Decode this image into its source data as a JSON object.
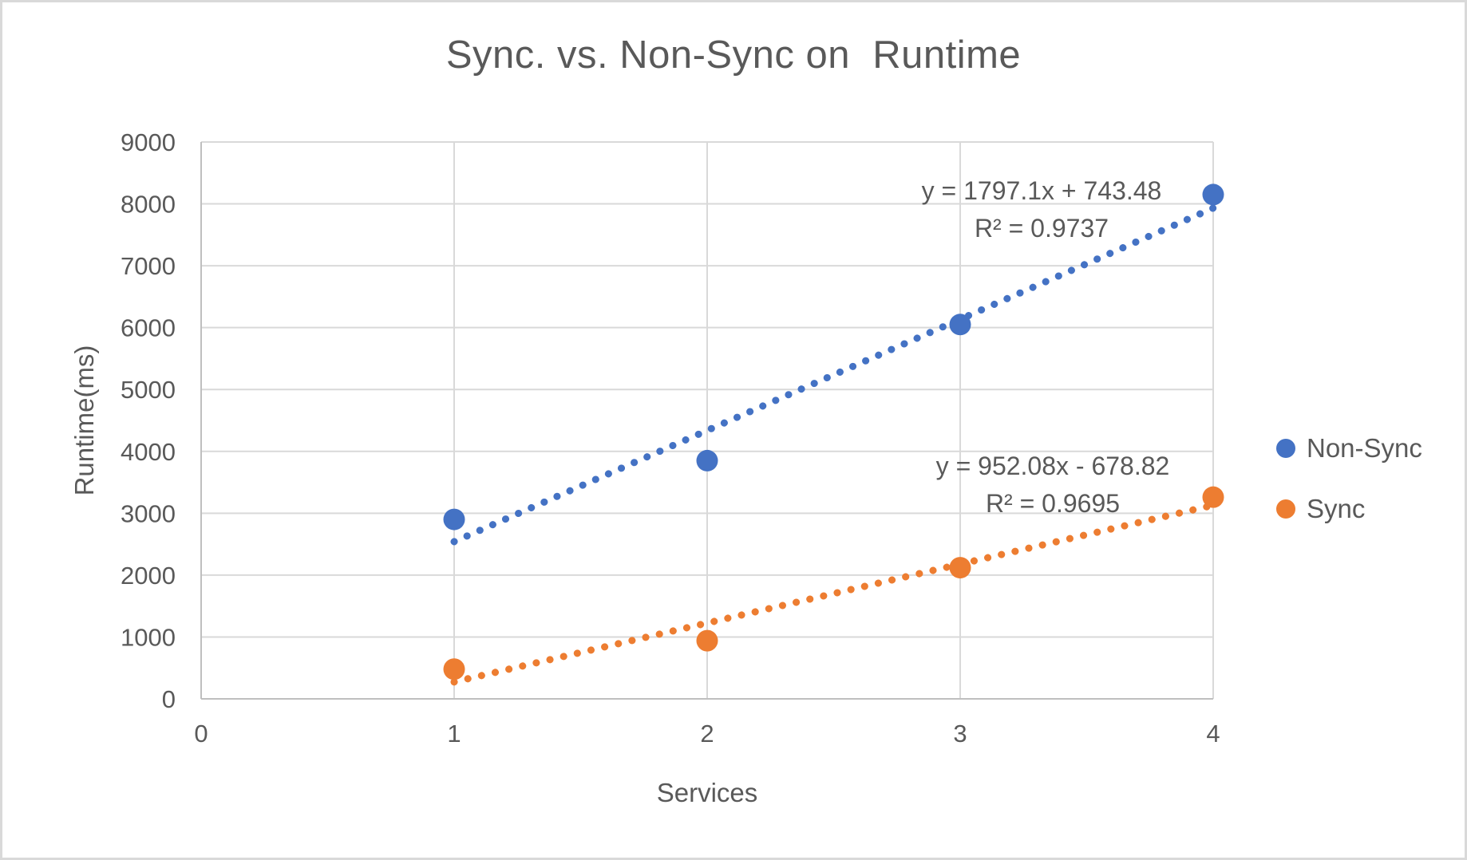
{
  "chart_data": {
    "type": "scatter",
    "title": "Sync. vs. Non-Sync on  Runtime",
    "xlabel": "Services",
    "ylabel": "Runtime(ms)",
    "xlim": [
      0,
      4
    ],
    "ylim": [
      0,
      9000
    ],
    "x_ticks": [
      0,
      1,
      2,
      3,
      4
    ],
    "y_ticks": [
      0,
      1000,
      2000,
      3000,
      4000,
      5000,
      6000,
      7000,
      8000,
      9000
    ],
    "grid": true,
    "legend_position": "right",
    "colors": {
      "grid": "#d9d9d9",
      "axis": "#bfbfbf",
      "text": "#595959",
      "title": "#595959",
      "background": "#ffffff",
      "border": "#d9d9d9"
    },
    "series": [
      {
        "name": "Non-Sync",
        "color": "#4472c4",
        "x": [
          1,
          2,
          3,
          4
        ],
        "values": [
          2900,
          3850,
          6050,
          8150
        ],
        "trendline": {
          "type": "linear",
          "slope": 1797.1,
          "intercept": 743.48,
          "x_range": [
            1,
            4
          ],
          "style": "dotted",
          "equation": "y = 1797.1x + 743.48",
          "r_squared": "R² = 0.9737"
        }
      },
      {
        "name": "Sync",
        "color": "#ed7d31",
        "x": [
          1,
          2,
          3,
          4
        ],
        "values": [
          480,
          940,
          2120,
          3260
        ],
        "trendline": {
          "type": "linear",
          "slope": 952.08,
          "intercept": -678.82,
          "x_range": [
            1,
            4
          ],
          "style": "dotted",
          "equation": "y = 952.08x - 678.82",
          "r_squared": "R² = 0.9695"
        }
      }
    ]
  }
}
